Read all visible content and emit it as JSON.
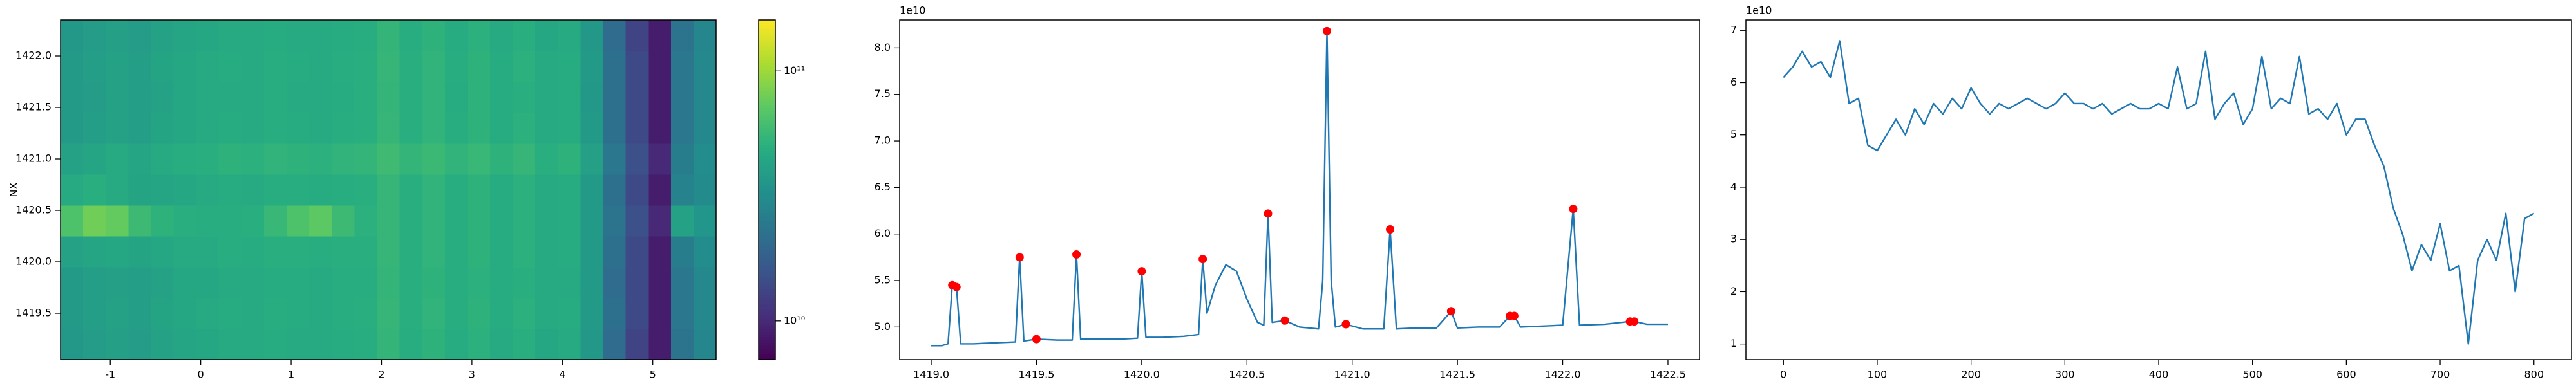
{
  "chart_data": [
    {
      "type": "heatmap",
      "ylabel": "NX",
      "xlim": [
        -1.55,
        5.7
      ],
      "ylim": [
        1419.05,
        1422.35
      ],
      "xticks": [
        -1,
        0,
        1,
        2,
        3,
        4,
        5
      ],
      "yticks": [
        1419.5,
        {
          "value": 1420,
          "label": "1420.0"
        },
        1420.5,
        {
          "value": 1421,
          "label": "1421.0"
        },
        1421.5,
        {
          "value": 1422,
          "label": "1422.0"
        }
      ],
      "colorscale": "viridis",
      "color_log": true,
      "clim": [
        7000000000.0,
        160000000000.0
      ],
      "cticks": [
        {
          "value": 10000000000.0,
          "label": "10¹⁰"
        },
        {
          "value": 100000000000.0,
          "label": "10¹¹"
        }
      ],
      "x": [
        -1.425,
        -1.175,
        -0.925,
        -0.675,
        -0.425,
        -0.175,
        0.075,
        0.325,
        0.575,
        0.825,
        1.075,
        1.325,
        1.575,
        1.825,
        2.075,
        2.325,
        2.575,
        2.825,
        3.075,
        3.325,
        3.575,
        3.825,
        4.075,
        4.325,
        4.575,
        4.825,
        5.075,
        5.325,
        5.575
      ],
      "y": [
        1419.2,
        1419.5,
        1419.8,
        1420.1,
        1420.4,
        1420.7,
        1421.0,
        1421.3,
        1421.6,
        1421.9,
        1422.2
      ],
      "z": [
        [
          37000000000.0,
          39000000000.0,
          41000000000.0,
          39000000000.0,
          42000000000.0,
          44000000000.0,
          45000000000.0,
          47000000000.0,
          46000000000.0,
          48000000000.0,
          47000000000.0,
          46000000000.0,
          48000000000.0,
          49000000000.0,
          54000000000.0,
          49000000000.0,
          52000000000.0,
          48000000000.0,
          51000000000.0,
          47000000000.0,
          50000000000.0,
          45000000000.0,
          47000000000.0,
          37000000000.0,
          21000000000.0,
          13000000000.0,
          9000000000.0,
          23000000000.0,
          29000000000.0
        ],
        [
          38000000000.0,
          40000000000.0,
          42000000000.0,
          40000000000.0,
          43000000000.0,
          45000000000.0,
          46000000000.0,
          48000000000.0,
          47000000000.0,
          49000000000.0,
          48000000000.0,
          47000000000.0,
          49000000000.0,
          50000000000.0,
          55000000000.0,
          50000000000.0,
          53000000000.0,
          49000000000.0,
          52000000000.0,
          48000000000.0,
          51000000000.0,
          46000000000.0,
          48000000000.0,
          38000000000.0,
          22000000000.0,
          14000000000.0,
          9000000000.0,
          24000000000.0,
          30000000000.0
        ],
        [
          38000000000.0,
          40000000000.0,
          41000000000.0,
          40000000000.0,
          42000000000.0,
          45000000000.0,
          45000000000.0,
          47000000000.0,
          47000000000.0,
          48000000000.0,
          48000000000.0,
          46000000000.0,
          49000000000.0,
          49000000000.0,
          54000000000.0,
          50000000000.0,
          52000000000.0,
          49000000000.0,
          51000000000.0,
          48000000000.0,
          50000000000.0,
          46000000000.0,
          47000000000.0,
          38000000000.0,
          21000000000.0,
          14000000000.0,
          9000000000.0,
          24000000000.0,
          30000000000.0
        ],
        [
          42000000000.0,
          44000000000.0,
          45000000000.0,
          43000000000.0,
          45000000000.0,
          47000000000.0,
          47000000000.0,
          49000000000.0,
          48000000000.0,
          50000000000.0,
          50000000000.0,
          49000000000.0,
          50000000000.0,
          50000000000.0,
          55000000000.0,
          50000000000.0,
          53000000000.0,
          49000000000.0,
          52000000000.0,
          48000000000.0,
          51000000000.0,
          46000000000.0,
          48000000000.0,
          38000000000.0,
          22000000000.0,
          14000000000.0,
          9000000000.0,
          26000000000.0,
          32000000000.0
        ],
        [
          65000000000.0,
          80000000000.0,
          75000000000.0,
          58000000000.0,
          52000000000.0,
          50000000000.0,
          49000000000.0,
          49000000000.0,
          50000000000.0,
          56000000000.0,
          65000000000.0,
          72000000000.0,
          58000000000.0,
          51000000000.0,
          55000000000.0,
          50000000000.0,
          53000000000.0,
          49000000000.0,
          52000000000.0,
          48000000000.0,
          51000000000.0,
          46000000000.0,
          48000000000.0,
          38000000000.0,
          23000000000.0,
          15000000000.0,
          10000000000.0,
          42000000000.0,
          36000000000.0
        ],
        [
          46000000000.0,
          50000000000.0,
          46000000000.0,
          43000000000.0,
          44000000000.0,
          45000000000.0,
          46000000000.0,
          48000000000.0,
          47000000000.0,
          49000000000.0,
          49000000000.0,
          48000000000.0,
          49000000000.0,
          50000000000.0,
          55000000000.0,
          50000000000.0,
          53000000000.0,
          49000000000.0,
          52000000000.0,
          48000000000.0,
          51000000000.0,
          46000000000.0,
          48000000000.0,
          38000000000.0,
          22000000000.0,
          14000000000.0,
          9000000000.0,
          28000000000.0,
          31000000000.0
        ],
        [
          42000000000.0,
          44000000000.0,
          46000000000.0,
          44000000000.0,
          47000000000.0,
          49000000000.0,
          50000000000.0,
          52000000000.0,
          51000000000.0,
          53000000000.0,
          52000000000.0,
          51000000000.0,
          53000000000.0,
          54000000000.0,
          59000000000.0,
          54000000000.0,
          57000000000.0,
          53000000000.0,
          56000000000.0,
          52000000000.0,
          55000000000.0,
          50000000000.0,
          52000000000.0,
          41000000000.0,
          24000000000.0,
          15000000000.0,
          10000000000.0,
          26000000000.0,
          32000000000.0
        ],
        [
          38000000000.0,
          40000000000.0,
          42000000000.0,
          40000000000.0,
          43000000000.0,
          45000000000.0,
          46000000000.0,
          48000000000.0,
          47000000000.0,
          49000000000.0,
          48000000000.0,
          47000000000.0,
          49000000000.0,
          50000000000.0,
          55000000000.0,
          50000000000.0,
          53000000000.0,
          49000000000.0,
          52000000000.0,
          48000000000.0,
          51000000000.0,
          46000000000.0,
          48000000000.0,
          38000000000.0,
          22000000000.0,
          14000000000.0,
          9000000000.0,
          24000000000.0,
          30000000000.0
        ],
        [
          38000000000.0,
          39000000000.0,
          42000000000.0,
          40000000000.0,
          42000000000.0,
          45000000000.0,
          46000000000.0,
          47000000000.0,
          47000000000.0,
          49000000000.0,
          47000000000.0,
          47000000000.0,
          48000000000.0,
          50000000000.0,
          54000000000.0,
          50000000000.0,
          53000000000.0,
          48000000000.0,
          52000000000.0,
          48000000000.0,
          50000000000.0,
          46000000000.0,
          48000000000.0,
          37000000000.0,
          22000000000.0,
          14000000000.0,
          9000000000.0,
          24000000000.0,
          30000000000.0
        ],
        [
          38000000000.0,
          40000000000.0,
          42000000000.0,
          40000000000.0,
          43000000000.0,
          45000000000.0,
          46000000000.0,
          48000000000.0,
          47000000000.0,
          49000000000.0,
          48000000000.0,
          47000000000.0,
          49000000000.0,
          50000000000.0,
          55000000000.0,
          50000000000.0,
          53000000000.0,
          49000000000.0,
          52000000000.0,
          48000000000.0,
          51000000000.0,
          46000000000.0,
          48000000000.0,
          38000000000.0,
          22000000000.0,
          14000000000.0,
          9000000000.0,
          24000000000.0,
          30000000000.0
        ],
        [
          37000000000.0,
          39000000000.0,
          41000000000.0,
          39000000000.0,
          42000000000.0,
          44000000000.0,
          45000000000.0,
          47000000000.0,
          46000000000.0,
          48000000000.0,
          47000000000.0,
          46000000000.0,
          48000000000.0,
          49000000000.0,
          54000000000.0,
          49000000000.0,
          52000000000.0,
          48000000000.0,
          51000000000.0,
          47000000000.0,
          50000000000.0,
          45000000000.0,
          47000000000.0,
          37000000000.0,
          21000000000.0,
          13000000000.0,
          9000000000.0,
          23000000000.0,
          29000000000.0
        ]
      ]
    },
    {
      "type": "line",
      "y_offset_label": "1e10",
      "xlim": [
        1418.85,
        1422.65
      ],
      "ylim": [
        4.65,
        8.3
      ],
      "xticks": [
        {
          "value": 1419,
          "label": "1419.0"
        },
        1419.5,
        {
          "value": 1420,
          "label": "1420.0"
        },
        1420.5,
        {
          "value": 1421,
          "label": "1421.0"
        },
        1421.5,
        {
          "value": 1422,
          "label": "1422.0"
        },
        1422.5
      ],
      "yticks": [
        {
          "value": 5,
          "label": "5.0"
        },
        5.5,
        {
          "value": 6,
          "label": "6.0"
        },
        6.5,
        {
          "value": 7,
          "label": "7.0"
        },
        7.5,
        {
          "value": 8,
          "label": "8.0"
        }
      ],
      "series": [
        {
          "type": "line",
          "color": "#1f77b4",
          "x": [
            1419.0,
            1419.05,
            1419.08,
            1419.1,
            1419.12,
            1419.14,
            1419.2,
            1419.3,
            1419.4,
            1419.42,
            1419.44,
            1419.5,
            1419.6,
            1419.67,
            1419.69,
            1419.71,
            1419.8,
            1419.9,
            1419.98,
            1420.0,
            1420.02,
            1420.1,
            1420.2,
            1420.27,
            1420.29,
            1420.31,
            1420.35,
            1420.4,
            1420.45,
            1420.5,
            1420.55,
            1420.58,
            1420.6,
            1420.62,
            1420.68,
            1420.75,
            1420.84,
            1420.86,
            1420.88,
            1420.9,
            1420.92,
            1420.97,
            1421.05,
            1421.15,
            1421.18,
            1421.21,
            1421.3,
            1421.4,
            1421.47,
            1421.5,
            1421.6,
            1421.7,
            1421.75,
            1421.77,
            1421.8,
            1421.9,
            1422.0,
            1422.05,
            1422.08,
            1422.2,
            1422.32,
            1422.34,
            1422.4,
            1422.5
          ],
          "values": [
            4.8,
            4.8,
            4.82,
            5.45,
            5.43,
            4.82,
            4.82,
            4.83,
            4.84,
            5.75,
            4.85,
            4.87,
            4.86,
            4.86,
            5.78,
            4.87,
            4.87,
            4.87,
            4.88,
            5.6,
            4.89,
            4.89,
            4.9,
            4.92,
            5.73,
            5.15,
            5.45,
            5.67,
            5.6,
            5.3,
            5.05,
            5.02,
            6.22,
            5.05,
            5.07,
            5.0,
            4.98,
            5.5,
            8.18,
            5.5,
            5.0,
            5.03,
            4.98,
            4.98,
            6.05,
            4.98,
            4.99,
            4.99,
            5.17,
            4.99,
            5.0,
            5.0,
            5.12,
            5.12,
            5.0,
            5.01,
            5.02,
            6.27,
            5.02,
            5.03,
            5.06,
            5.06,
            5.03,
            5.03
          ]
        },
        {
          "type": "scatter",
          "color": "#ff0000",
          "x": [
            1419.1,
            1419.12,
            1419.42,
            1419.5,
            1419.69,
            1420.0,
            1420.29,
            1420.6,
            1420.68,
            1420.88,
            1420.97,
            1421.18,
            1421.47,
            1421.75,
            1421.77,
            1422.05,
            1422.32,
            1422.34
          ],
          "values": [
            5.45,
            5.43,
            5.75,
            4.87,
            5.78,
            5.6,
            5.73,
            6.22,
            5.07,
            8.18,
            5.03,
            6.05,
            5.17,
            5.12,
            5.12,
            6.27,
            5.06,
            5.06
          ]
        }
      ]
    },
    {
      "type": "line",
      "y_offset_label": "1e10",
      "xlim": [
        -40,
        840
      ],
      "ylim": [
        0.7,
        7.2
      ],
      "xticks": [
        0,
        100,
        200,
        300,
        400,
        500,
        600,
        700,
        800
      ],
      "yticks": [
        1,
        2,
        3,
        4,
        5,
        6,
        7
      ],
      "series": [
        {
          "type": "line",
          "color": "#1f77b4",
          "x": [
            0,
            10,
            20,
            30,
            40,
            50,
            60,
            70,
            80,
            90,
            100,
            110,
            120,
            130,
            140,
            150,
            160,
            170,
            180,
            190,
            200,
            210,
            220,
            230,
            240,
            250,
            260,
            270,
            280,
            290,
            300,
            310,
            320,
            330,
            340,
            350,
            360,
            370,
            380,
            390,
            400,
            410,
            420,
            430,
            440,
            450,
            460,
            470,
            480,
            490,
            500,
            510,
            520,
            530,
            540,
            550,
            560,
            570,
            580,
            590,
            600,
            610,
            620,
            630,
            640,
            650,
            660,
            670,
            680,
            690,
            700,
            710,
            720,
            730,
            740,
            750,
            760,
            770,
            780,
            790,
            800
          ],
          "values": [
            6.1,
            6.3,
            6.6,
            6.3,
            6.4,
            6.1,
            6.8,
            5.6,
            5.7,
            4.8,
            4.7,
            5.0,
            5.3,
            5.0,
            5.5,
            5.2,
            5.6,
            5.4,
            5.7,
            5.5,
            5.9,
            5.6,
            5.4,
            5.6,
            5.5,
            5.6,
            5.7,
            5.6,
            5.5,
            5.6,
            5.8,
            5.6,
            5.6,
            5.5,
            5.6,
            5.4,
            5.5,
            5.6,
            5.5,
            5.5,
            5.6,
            5.5,
            6.3,
            5.5,
            5.6,
            6.6,
            5.3,
            5.6,
            5.8,
            5.2,
            5.5,
            6.5,
            5.5,
            5.7,
            5.6,
            6.5,
            5.4,
            5.5,
            5.3,
            5.6,
            5.0,
            5.3,
            5.3,
            4.8,
            4.4,
            3.6,
            3.1,
            2.4,
            2.9,
            2.6,
            3.3,
            2.4,
            2.5,
            1.0,
            2.6,
            3.0,
            2.6,
            3.5,
            2.0,
            3.4,
            3.5
          ]
        }
      ]
    }
  ]
}
